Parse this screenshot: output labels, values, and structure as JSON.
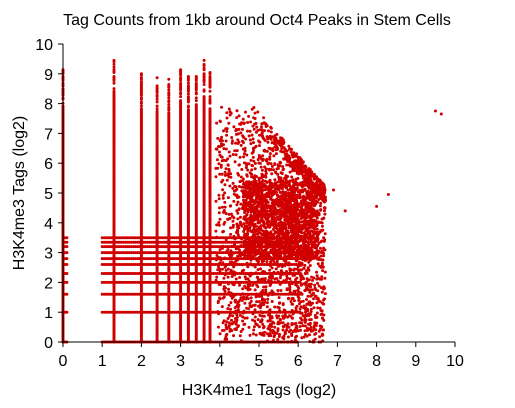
{
  "chart_data": {
    "type": "scatter",
    "title": "Tag Counts from 1kb around Oct4 Peaks in Stem Cells",
    "xlabel": "H3K4me1 Tags (log2)",
    "ylabel": "H3K4me3 Tags (log2)",
    "xlim": [
      0,
      10
    ],
    "ylim": [
      0,
      10
    ],
    "xticks": [
      "0",
      "1",
      "2",
      "3",
      "4",
      "5",
      "6",
      "7",
      "8",
      "9",
      "10"
    ],
    "yticks": [
      "0",
      "1",
      "2",
      "3",
      "4",
      "5",
      "6",
      "7",
      "8",
      "9",
      "10"
    ],
    "grid": false,
    "marker_color": "#d10000",
    "discrete_x_columns": [
      {
        "x": 0,
        "ymax": 9.15
      },
      {
        "x": 1.3,
        "ymax": 9.45
      },
      {
        "x": 2.0,
        "ymax": 9.0
      },
      {
        "x": 2.4,
        "ymax": 8.9
      },
      {
        "x": 2.7,
        "ymax": 8.9
      },
      {
        "x": 3.0,
        "ymax": 9.15
      },
      {
        "x": 3.2,
        "ymax": 8.95
      },
      {
        "x": 3.4,
        "ymax": 9.05
      },
      {
        "x": 3.6,
        "ymax": 9.45
      },
      {
        "x": 3.75,
        "ymax": 9.05
      }
    ],
    "discrete_y_levels": [
      0,
      1,
      1.6,
      2,
      2.3,
      2.6,
      2.8,
      3.0,
      3.2,
      3.35,
      3.5
    ],
    "dense_cloud": {
      "x_range": [
        3.9,
        6.7
      ],
      "y_range": [
        0,
        9.0
      ],
      "center": [
        5.5,
        4.5
      ]
    },
    "outliers": [
      {
        "x": 9.5,
        "y": 7.75
      },
      {
        "x": 9.65,
        "y": 7.65
      },
      {
        "x": 8.0,
        "y": 4.55
      },
      {
        "x": 8.3,
        "y": 4.95
      },
      {
        "x": 7.2,
        "y": 4.4
      },
      {
        "x": 6.9,
        "y": 5.1
      }
    ]
  }
}
